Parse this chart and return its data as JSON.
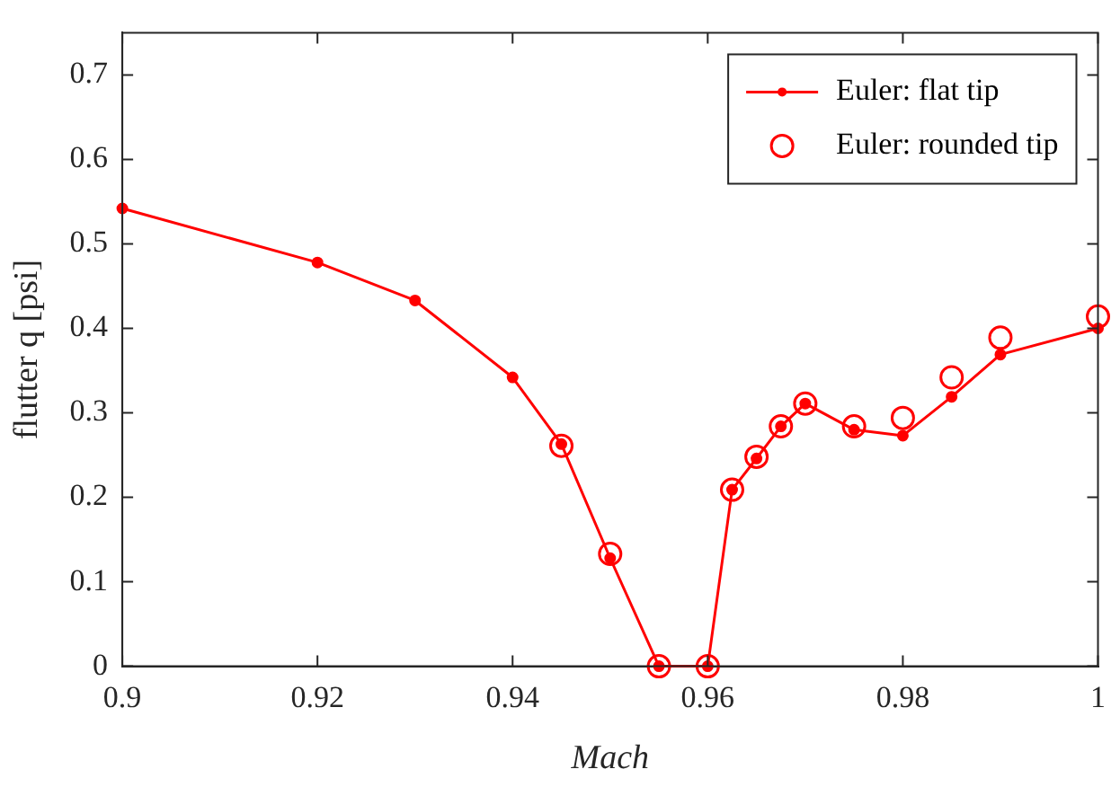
{
  "chart_data": {
    "type": "line",
    "xlabel": "Mach",
    "ylabel": "flutter q [psi]",
    "xlim": [
      0.9,
      1
    ],
    "xticks": [
      0.9,
      0.92,
      0.94,
      0.96,
      0.98,
      1
    ],
    "ylim": [
      0,
      0.75
    ],
    "yticks": [
      0,
      0.1,
      0.2,
      0.3,
      0.4,
      0.5,
      0.6,
      0.7
    ],
    "grid": false,
    "legend": "top right",
    "series": [
      {
        "name": "Euler: flat tip",
        "color": "#ff0000",
        "marker": "circle",
        "x": [
          0.9,
          0.92,
          0.93,
          0.94,
          0.945,
          0.95,
          0.955,
          0.96,
          0.9625,
          0.965,
          0.9675,
          0.97,
          0.975,
          0.98,
          0.985,
          0.99,
          1.0
        ],
        "values": [
          0.542,
          0.478,
          0.433,
          0.342,
          0.263,
          0.128,
          0,
          0,
          0.209,
          0.246,
          0.284,
          0.311,
          0.28,
          0.273,
          0.319,
          0.369,
          0.4
        ]
      },
      {
        "name": "Euler: rounded tip",
        "type": "scatter",
        "color": "#ff0000",
        "marker": "circle",
        "x": [
          0.945,
          0.95,
          0.955,
          0.96,
          0.9625,
          0.965,
          0.9675,
          0.97,
          0.975,
          0.98,
          0.985,
          0.99,
          1.0
        ],
        "values": [
          0.261,
          0.133,
          0,
          0,
          0.209,
          0.248,
          0.284,
          0.311,
          0.284,
          0.294,
          0.342,
          0.389,
          0.414
        ]
      }
    ]
  }
}
